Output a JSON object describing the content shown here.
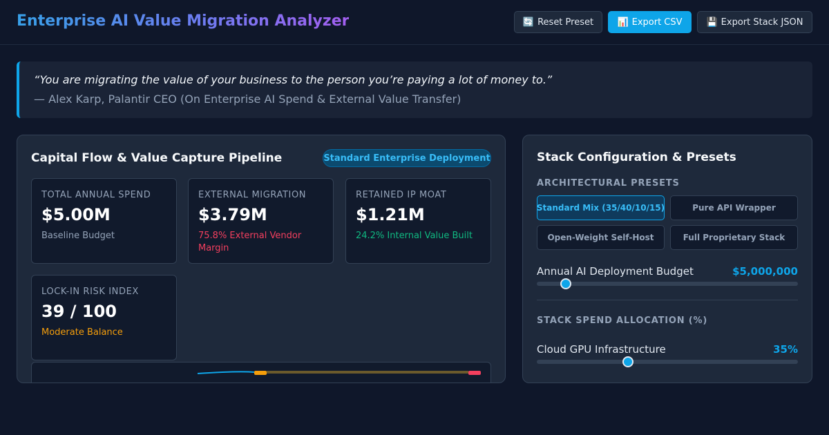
{
  "header": {
    "title": "Enterprise AI Value Migration Analyzer",
    "buttons": [
      {
        "icon": "refresh-icon",
        "glyph": "🔄",
        "label": "Reset Preset"
      },
      {
        "icon": "chart-icon",
        "glyph": "📊",
        "label": "Export CSV"
      },
      {
        "icon": "floppy-disk-icon",
        "glyph": "💾",
        "label": "Export Stack JSON"
      }
    ]
  },
  "quote": {
    "text": "“You are migrating the value of your business to the person you’re paying a lot of money to.”",
    "attribution": "— Alex Karp, Palantir CEO (On Enterprise AI Spend & External Value Transfer)"
  },
  "pipeline": {
    "title": "Capital Flow & Value Capture Pipeline",
    "badge": "Standard Enterprise Deployment",
    "cards": [
      {
        "label": "TOTAL ANNUAL SPEND",
        "value": "$5.00M",
        "sub": "Baseline Budget",
        "sub_color": "#94a3b8"
      },
      {
        "label": "EXTERNAL MIGRATION",
        "value": "$3.79M",
        "sub": "75.8% External Vendor Margin",
        "sub_color": "#f43f5e"
      },
      {
        "label": "RETAINED IP MOAT",
        "value": "$1.21M",
        "sub": "24.2% Internal Value Built",
        "sub_color": "#10b981"
      },
      {
        "label": "LOCK-IN RISK INDEX",
        "value": "39 / 100",
        "sub": "Moderate Balance",
        "sub_color": "#f59e0b"
      }
    ]
  },
  "config": {
    "title": "Stack Configuration & Presets",
    "presets_label": "ARCHITECTURAL PRESETS",
    "presets": [
      {
        "label": "Standard Mix (35/40/10/15)",
        "active": true
      },
      {
        "label": "Pure API Wrapper",
        "active": false
      },
      {
        "label": "Open-Weight Self-Host",
        "active": false
      },
      {
        "label": "Full Proprietary Stack",
        "active": false
      }
    ],
    "budget": {
      "label": "Annual AI Deployment Budget",
      "value": "$5,000,000",
      "slider_fraction": 0.11
    },
    "allocation_label": "STACK SPEND ALLOCATION (%)",
    "allocations": [
      {
        "label": "Cloud GPU Infrastructure",
        "value": "35%",
        "slider_fraction": 0.35
      }
    ]
  },
  "colors": {
    "accent": "#0ea5e9",
    "danger": "#f43f5e",
    "success": "#10b981",
    "warning": "#f59e0b"
  }
}
